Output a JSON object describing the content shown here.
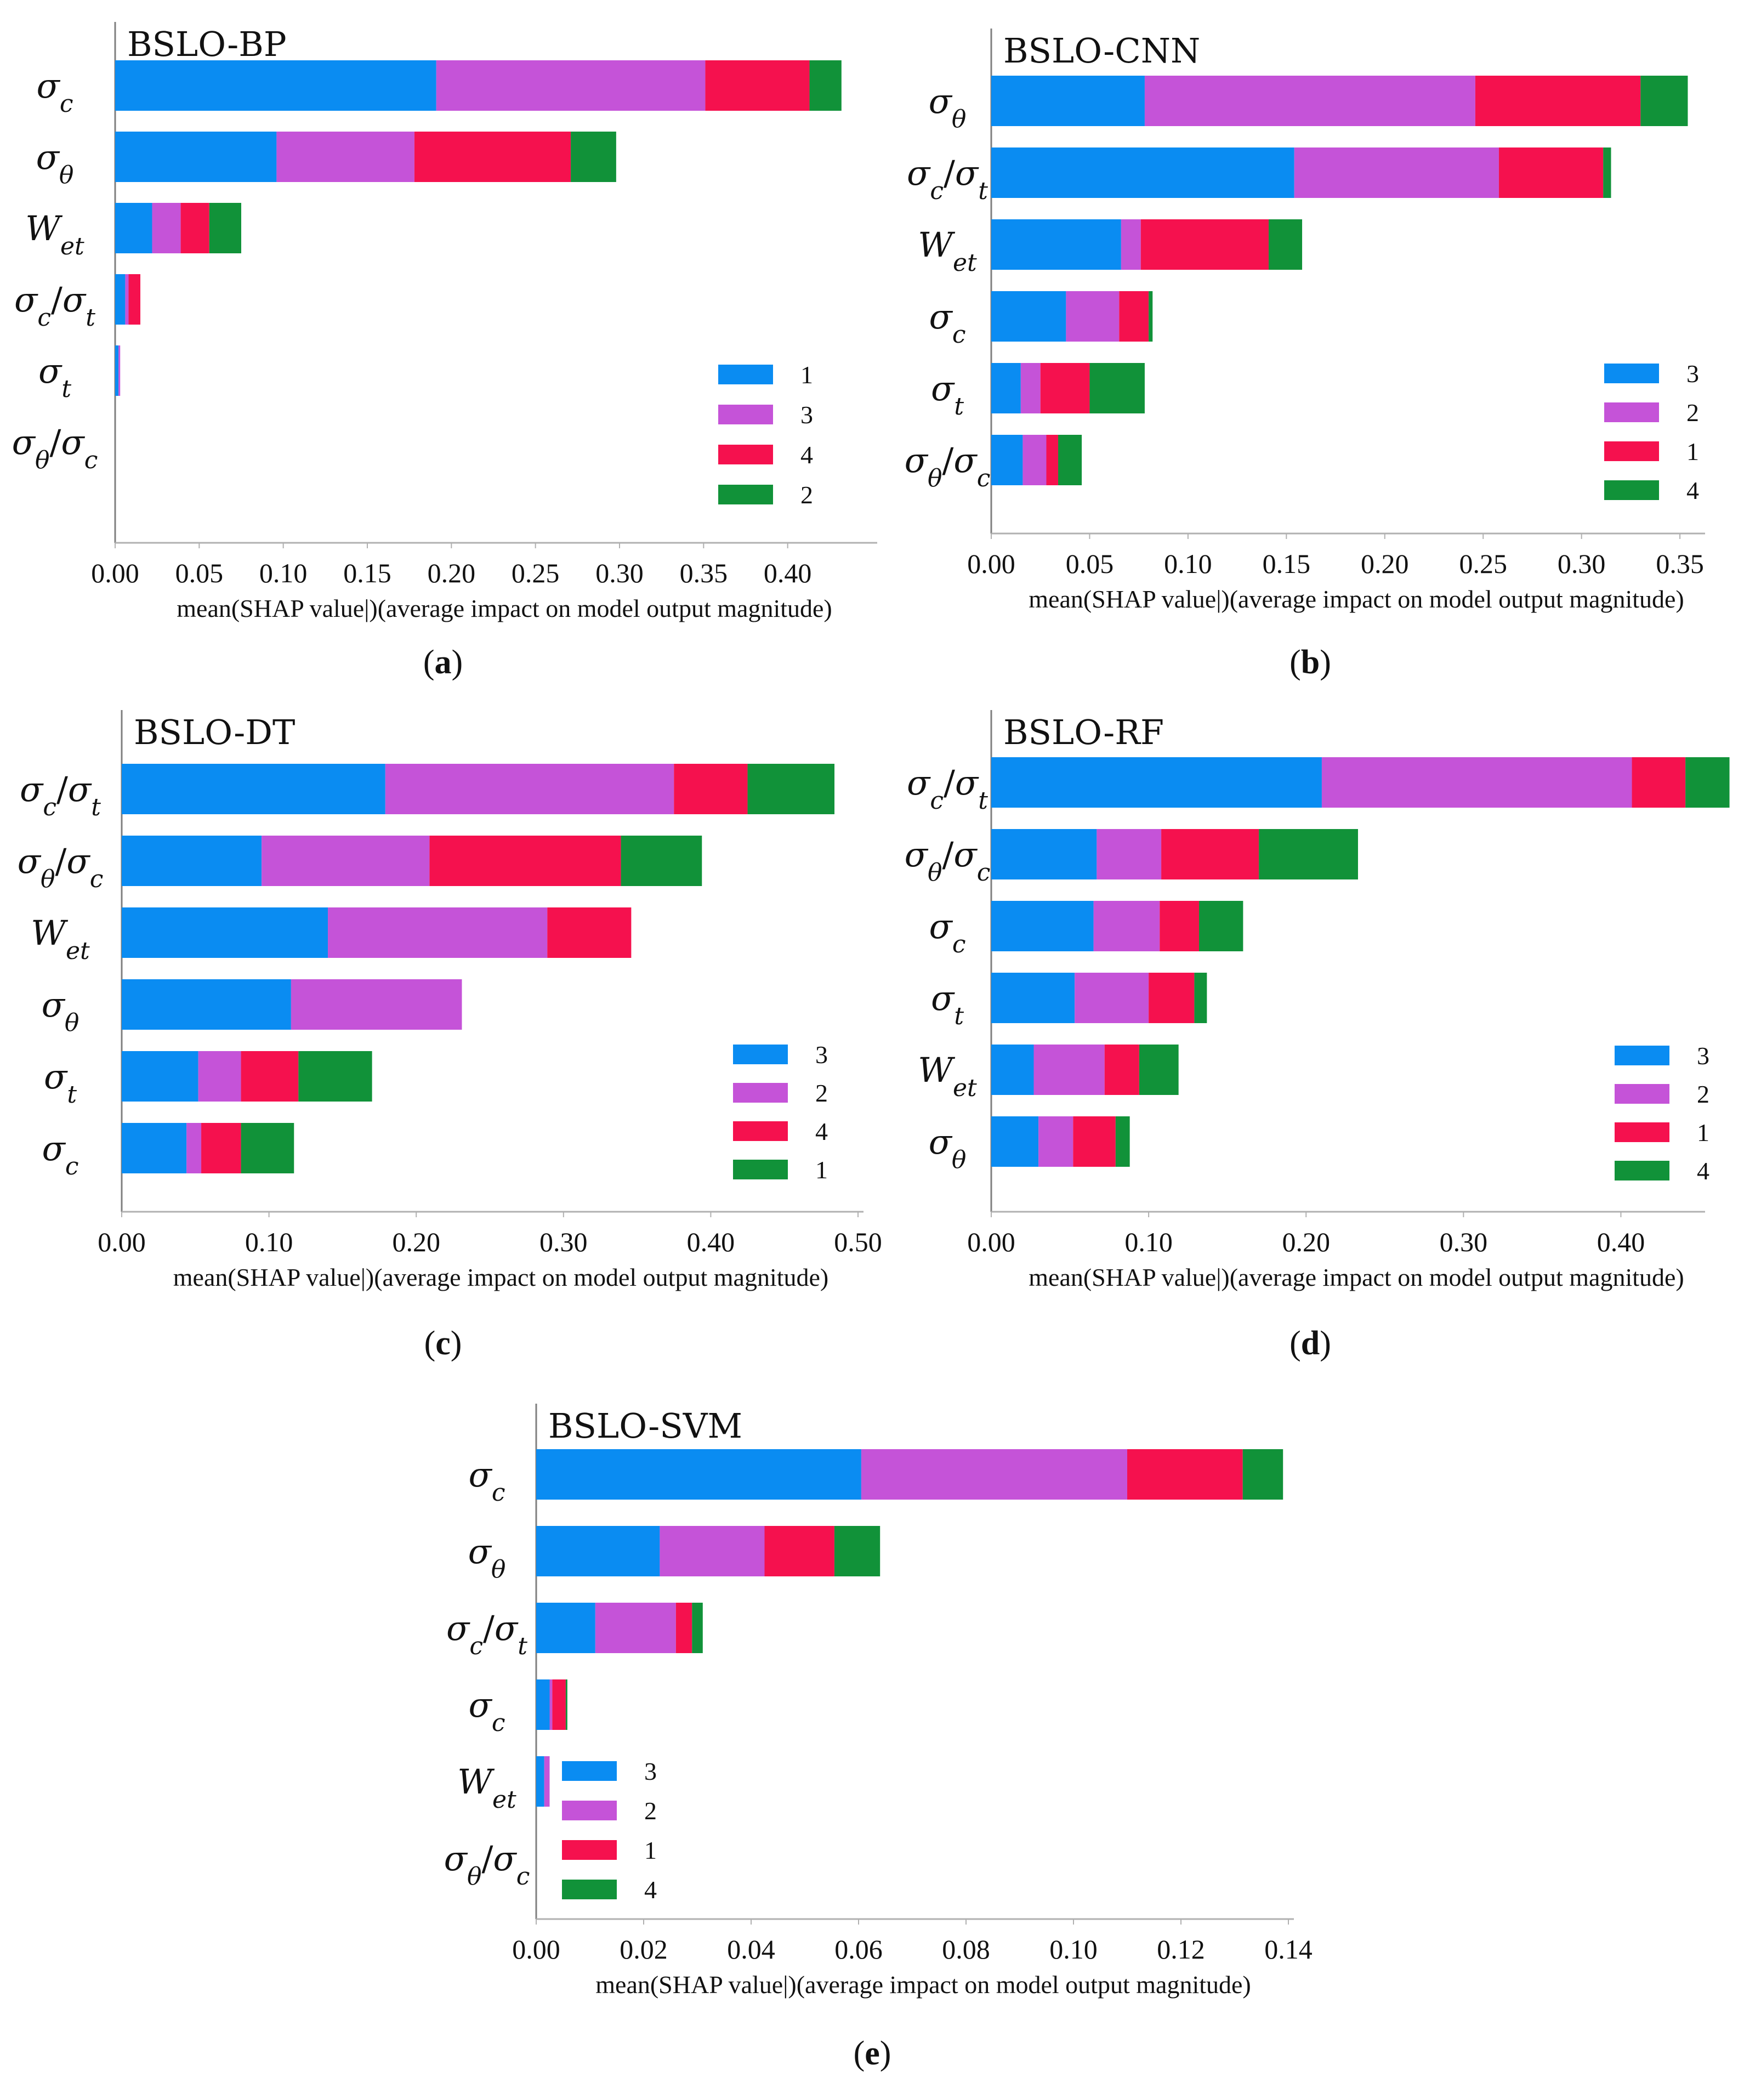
{
  "figure": {
    "xlabel": "mean(SHAP value|)(average impact on model output magnitude)"
  },
  "colors": {
    "blue": "#0A8CF2",
    "purple": "#C553D8",
    "red": "#F5114E",
    "green": "#119239",
    "axis": "#7f7f7f",
    "text": "#111111"
  },
  "chart_data": [
    {
      "panel": "(a)",
      "type": "bar",
      "orientation": "horizontal-stacked",
      "title": "BSLO-BP",
      "xlabel": "mean(SHAP value|)(average impact on model output magnitude)",
      "xlim": [
        0,
        0.45
      ],
      "xticks": [
        "0.00",
        "0.05",
        "0.10",
        "0.15",
        "0.20",
        "0.25",
        "0.30",
        "0.35",
        "0.40"
      ],
      "legend_position": "lower-right",
      "legend": [
        {
          "label": "1",
          "color": "blue"
        },
        {
          "label": "3",
          "color": "purple"
        },
        {
          "label": "4",
          "color": "red"
        },
        {
          "label": "2",
          "color": "green"
        }
      ],
      "categories": [
        {
          "base": "σ",
          "sub": "c",
          "ratio": false
        },
        {
          "base": "σ",
          "sub": "θ",
          "ratio": false
        },
        {
          "base": "W",
          "sub": "et",
          "ratio": false
        },
        {
          "base": "σ",
          "sub": "c",
          "base2": "σ",
          "sub2": "t",
          "ratio": true
        },
        {
          "base": "σ",
          "sub": "t",
          "ratio": false
        },
        {
          "base": "σ",
          "sub": "θ",
          "base2": "σ",
          "sub2": "c",
          "ratio": true
        }
      ],
      "series": [
        {
          "name": "1",
          "color": "blue",
          "values": [
            0.191,
            0.096,
            0.022,
            0.006,
            0.002,
            0.0
          ]
        },
        {
          "name": "3",
          "color": "purple",
          "values": [
            0.16,
            0.082,
            0.017,
            0.002,
            0.001,
            0.0
          ]
        },
        {
          "name": "4",
          "color": "red",
          "values": [
            0.062,
            0.093,
            0.017,
            0.007,
            0.0,
            0.0
          ]
        },
        {
          "name": "2",
          "color": "green",
          "values": [
            0.019,
            0.027,
            0.019,
            0.0,
            0.0,
            0.0
          ]
        }
      ]
    },
    {
      "panel": "(b)",
      "type": "bar",
      "orientation": "horizontal-stacked",
      "title": "BSLO-CNN",
      "xlabel": "mean(SHAP value|)(average impact on model output magnitude)",
      "xlim": [
        0,
        0.36
      ],
      "xticks": [
        "0.00",
        "0.05",
        "0.10",
        "0.15",
        "0.20",
        "0.25",
        "0.30",
        "0.35"
      ],
      "legend_position": "lower-right",
      "legend": [
        {
          "label": "3",
          "color": "blue"
        },
        {
          "label": "2",
          "color": "purple"
        },
        {
          "label": "1",
          "color": "red"
        },
        {
          "label": "4",
          "color": "green"
        }
      ],
      "categories": [
        {
          "base": "σ",
          "sub": "θ",
          "ratio": false
        },
        {
          "base": "σ",
          "sub": "c",
          "base2": "σ",
          "sub2": "t",
          "ratio": true
        },
        {
          "base": "W",
          "sub": "et",
          "ratio": false
        },
        {
          "base": "σ",
          "sub": "c",
          "ratio": false
        },
        {
          "base": "σ",
          "sub": "t",
          "ratio": false
        },
        {
          "base": "σ",
          "sub": "θ",
          "base2": "σ",
          "sub2": "c",
          "ratio": true
        }
      ],
      "series": [
        {
          "name": "3",
          "color": "blue",
          "values": [
            0.078,
            0.154,
            0.066,
            0.038,
            0.015,
            0.016
          ]
        },
        {
          "name": "2",
          "color": "purple",
          "values": [
            0.168,
            0.104,
            0.01,
            0.027,
            0.01,
            0.012
          ]
        },
        {
          "name": "1",
          "color": "red",
          "values": [
            0.084,
            0.053,
            0.065,
            0.015,
            0.025,
            0.006
          ]
        },
        {
          "name": "4",
          "color": "green",
          "values": [
            0.024,
            0.004,
            0.017,
            0.002,
            0.028,
            0.012
          ]
        }
      ]
    },
    {
      "panel": "(c)",
      "type": "bar",
      "orientation": "horizontal-stacked",
      "title": "BSLO-DT",
      "xlabel": "mean(SHAP value|)(average impact on model output magnitude)",
      "xlim": [
        0,
        0.5
      ],
      "xticks": [
        "0.00",
        "0.10",
        "0.20",
        "0.30",
        "0.40",
        "0.50"
      ],
      "legend_position": "lower-right",
      "legend": [
        {
          "label": "3",
          "color": "blue"
        },
        {
          "label": "2",
          "color": "purple"
        },
        {
          "label": "4",
          "color": "red"
        },
        {
          "label": "1",
          "color": "green"
        }
      ],
      "categories": [
        {
          "base": "σ",
          "sub": "c",
          "base2": "σ",
          "sub2": "t",
          "ratio": true
        },
        {
          "base": "σ",
          "sub": "θ",
          "base2": "σ",
          "sub2": "c",
          "ratio": true
        },
        {
          "base": "W",
          "sub": "et",
          "ratio": false
        },
        {
          "base": "σ",
          "sub": "θ",
          "ratio": false
        },
        {
          "base": "σ",
          "sub": "t",
          "ratio": false
        },
        {
          "base": "σ",
          "sub": "c",
          "ratio": false
        }
      ],
      "series": [
        {
          "name": "3",
          "color": "blue",
          "values": [
            0.179,
            0.095,
            0.14,
            0.115,
            0.052,
            0.044
          ]
        },
        {
          "name": "2",
          "color": "purple",
          "values": [
            0.196,
            0.114,
            0.149,
            0.116,
            0.029,
            0.01
          ]
        },
        {
          "name": "4",
          "color": "red",
          "values": [
            0.05,
            0.13,
            0.057,
            0.0,
            0.039,
            0.027
          ]
        },
        {
          "name": "1",
          "color": "green",
          "values": [
            0.059,
            0.055,
            0.0,
            0.0,
            0.05,
            0.036
          ]
        }
      ]
    },
    {
      "panel": "(d)",
      "type": "bar",
      "orientation": "horizontal-stacked",
      "title": "BSLO-RF",
      "xlabel": "mean(SHAP value|)(average impact on model output magnitude)",
      "xlim": [
        0,
        0.45
      ],
      "xticks": [
        "0.00",
        "0.10",
        "0.20",
        "0.30",
        "0.40"
      ],
      "legend_position": "lower-right",
      "legend": [
        {
          "label": "3",
          "color": "blue"
        },
        {
          "label": "2",
          "color": "purple"
        },
        {
          "label": "1",
          "color": "red"
        },
        {
          "label": "4",
          "color": "green"
        }
      ],
      "categories": [
        {
          "base": "σ",
          "sub": "c",
          "base2": "σ",
          "sub2": "t",
          "ratio": true
        },
        {
          "base": "σ",
          "sub": "θ",
          "base2": "σ",
          "sub2": "c",
          "ratio": true
        },
        {
          "base": "σ",
          "sub": "c",
          "ratio": false
        },
        {
          "base": "σ",
          "sub": "t",
          "ratio": false
        },
        {
          "base": "W",
          "sub": "et",
          "ratio": false
        },
        {
          "base": "σ",
          "sub": "θ",
          "ratio": false
        }
      ],
      "series": [
        {
          "name": "3",
          "color": "blue",
          "values": [
            0.21,
            0.067,
            0.065,
            0.053,
            0.027,
            0.03
          ]
        },
        {
          "name": "2",
          "color": "purple",
          "values": [
            0.197,
            0.041,
            0.042,
            0.047,
            0.045,
            0.022
          ]
        },
        {
          "name": "1",
          "color": "red",
          "values": [
            0.034,
            0.062,
            0.025,
            0.029,
            0.022,
            0.027
          ]
        },
        {
          "name": "4",
          "color": "green",
          "values": [
            0.028,
            0.063,
            0.028,
            0.008,
            0.025,
            0.009
          ]
        }
      ]
    },
    {
      "panel": "(e)",
      "type": "bar",
      "orientation": "horizontal-stacked",
      "title": "BSLO-SVM",
      "xlabel": "mean(SHAP value|)(average impact on model output magnitude)",
      "xlim": [
        0,
        0.14
      ],
      "xticks": [
        "0.00",
        "0.02",
        "0.04",
        "0.06",
        "0.08",
        "0.10",
        "0.12",
        "0.14"
      ],
      "legend_position": "lower-left",
      "legend": [
        {
          "label": "3",
          "color": "blue"
        },
        {
          "label": "2",
          "color": "purple"
        },
        {
          "label": "1",
          "color": "red"
        },
        {
          "label": "4",
          "color": "green"
        }
      ],
      "categories": [
        {
          "base": "σ",
          "sub": "c",
          "ratio": false
        },
        {
          "base": "σ",
          "sub": "θ",
          "ratio": false
        },
        {
          "base": "σ",
          "sub": "c",
          "base2": "σ",
          "sub2": "t",
          "ratio": true
        },
        {
          "base": "σ",
          "sub": "c",
          "ratio": false
        },
        {
          "base": "W",
          "sub": "et",
          "ratio": false
        },
        {
          "base": "σ",
          "sub": "θ",
          "base2": "σ",
          "sub2": "c",
          "ratio": true
        }
      ],
      "series": [
        {
          "name": "3",
          "color": "blue",
          "values": [
            0.0605,
            0.023,
            0.011,
            0.0025,
            0.0015,
            0.0
          ]
        },
        {
          "name": "2",
          "color": "purple",
          "values": [
            0.0495,
            0.0195,
            0.015,
            0.0005,
            0.001,
            0.0
          ]
        },
        {
          "name": "1",
          "color": "red",
          "values": [
            0.0215,
            0.013,
            0.003,
            0.0025,
            0.0,
            0.0
          ]
        },
        {
          "name": "4",
          "color": "green",
          "values": [
            0.0075,
            0.0085,
            0.002,
            0.0003,
            0.0,
            0.0
          ]
        }
      ]
    }
  ]
}
